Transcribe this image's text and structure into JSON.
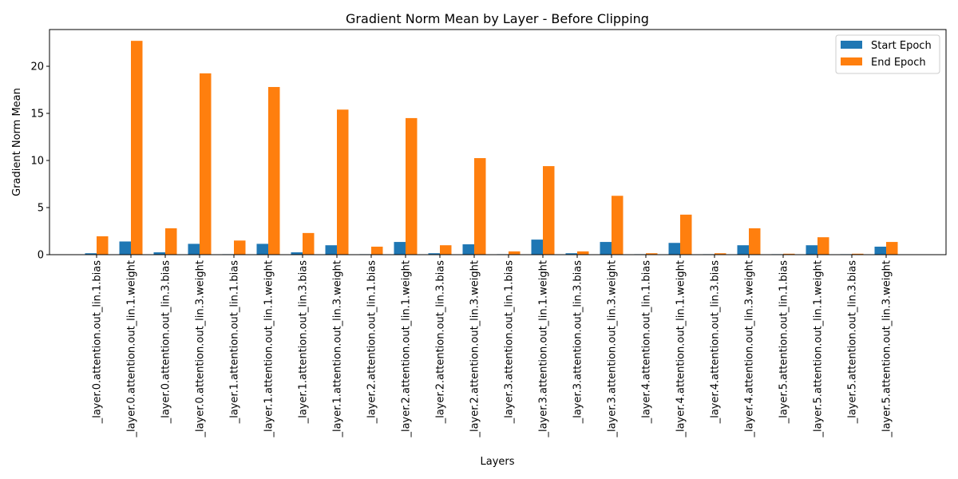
{
  "chart_data": {
    "type": "bar",
    "title": "Gradient Norm Mean by Layer - Before Clipping",
    "xlabel": "Layers",
    "ylabel": "Gradient Norm Mean",
    "ylim": [
      0,
      23.9
    ],
    "yticks": [
      0,
      5,
      10,
      15,
      20
    ],
    "legend_position": "top-right",
    "categories": [
      "_layer.0.attention.out_lin.1.bias",
      "_layer.0.attention.out_lin.1.weight",
      "_layer.0.attention.out_lin.3.bias",
      "_layer.0.attention.out_lin.3.weight",
      "_layer.1.attention.out_lin.1.bias",
      "_layer.1.attention.out_lin.1.weight",
      "_layer.1.attention.out_lin.3.bias",
      "_layer.1.attention.out_lin.3.weight",
      "_layer.2.attention.out_lin.1.bias",
      "_layer.2.attention.out_lin.1.weight",
      "_layer.2.attention.out_lin.3.bias",
      "_layer.2.attention.out_lin.3.weight",
      "_layer.3.attention.out_lin.1.bias",
      "_layer.3.attention.out_lin.1.weight",
      "_layer.3.attention.out_lin.3.bias",
      "_layer.3.attention.out_lin.3.weight",
      "_layer.4.attention.out_lin.1.bias",
      "_layer.4.attention.out_lin.1.weight",
      "_layer.4.attention.out_lin.3.bias",
      "_layer.4.attention.out_lin.3.weight",
      "_layer.5.attention.out_lin.1.bias",
      "_layer.5.attention.out_lin.1.weight",
      "_layer.5.attention.out_lin.3.bias",
      "_layer.5.attention.out_lin.3.weight"
    ],
    "series": [
      {
        "name": "Start Epoch",
        "color": "#1f77b4",
        "values": [
          0.15,
          1.4,
          0.25,
          1.15,
          0.05,
          1.15,
          0.25,
          1.0,
          0.05,
          1.35,
          0.15,
          1.1,
          0.05,
          1.6,
          0.15,
          1.35,
          0.05,
          1.25,
          0.05,
          1.0,
          0.05,
          1.0,
          0.05,
          0.85
        ]
      },
      {
        "name": "End Epoch",
        "color": "#ff7f0e",
        "values": [
          1.95,
          22.7,
          2.8,
          19.25,
          1.5,
          17.8,
          2.3,
          15.4,
          0.85,
          14.5,
          1.0,
          10.25,
          0.35,
          9.4,
          0.35,
          6.25,
          0.15,
          4.25,
          0.15,
          2.8,
          0.1,
          1.85,
          0.1,
          1.35
        ]
      }
    ]
  }
}
